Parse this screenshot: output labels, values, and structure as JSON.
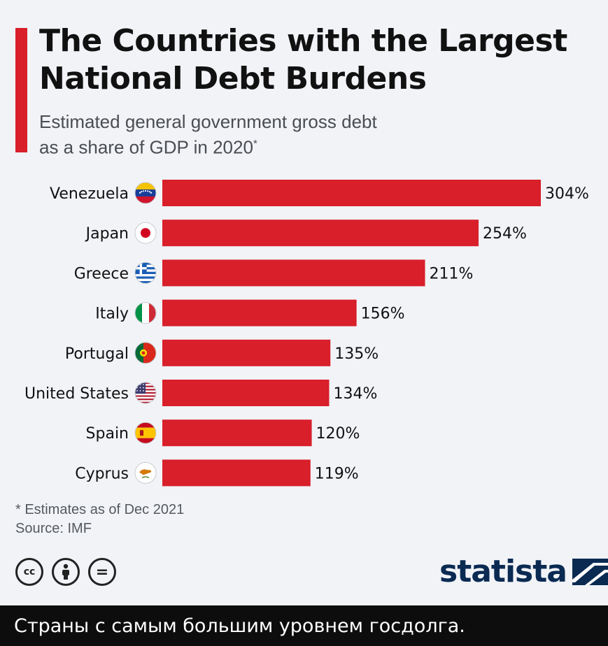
{
  "title_line1": "The Countries with the Largest",
  "title_line2": "National Debt Burdens",
  "subtitle_line1": "Estimated general government gross debt",
  "subtitle_line2": "as a share of GDP in 2020",
  "subtitle_mark": "*",
  "colors": {
    "accent": "#d81f2a",
    "bar": "#d81f2a",
    "text": "#111111",
    "brand": "#0a2a52"
  },
  "chart_data": {
    "type": "bar",
    "orientation": "horizontal",
    "title": "The Countries with the Largest National Debt Burdens",
    "subtitle": "Estimated general government gross debt as a share of GDP in 2020*",
    "categories": [
      "Venezuela",
      "Japan",
      "Greece",
      "Italy",
      "Portugal",
      "United States",
      "Spain",
      "Cyprus"
    ],
    "values": [
      304,
      254,
      211,
      156,
      135,
      134,
      120,
      119
    ],
    "value_labels": [
      "304%",
      "254%",
      "211%",
      "156%",
      "135%",
      "134%",
      "120%",
      "119%"
    ],
    "flags": [
      "venezuela-flag",
      "japan-flag",
      "greece-flag",
      "italy-flag",
      "portugal-flag",
      "united-states-flag",
      "spain-flag",
      "cyprus-flag"
    ],
    "unit": "% of GDP",
    "xlim": [
      0,
      304
    ],
    "grid": false,
    "xlabel": "",
    "ylabel": ""
  },
  "footnote": "* Estimates as of Dec 2021",
  "source": "Source: IMF",
  "license_icons": [
    "creative-commons-icon",
    "attribution-icon",
    "no-derivatives-icon"
  ],
  "cc_symbol": "cc",
  "nd_symbol": "=",
  "brand": "statista",
  "caption": "Страны с самым большим уровнем госдолга."
}
